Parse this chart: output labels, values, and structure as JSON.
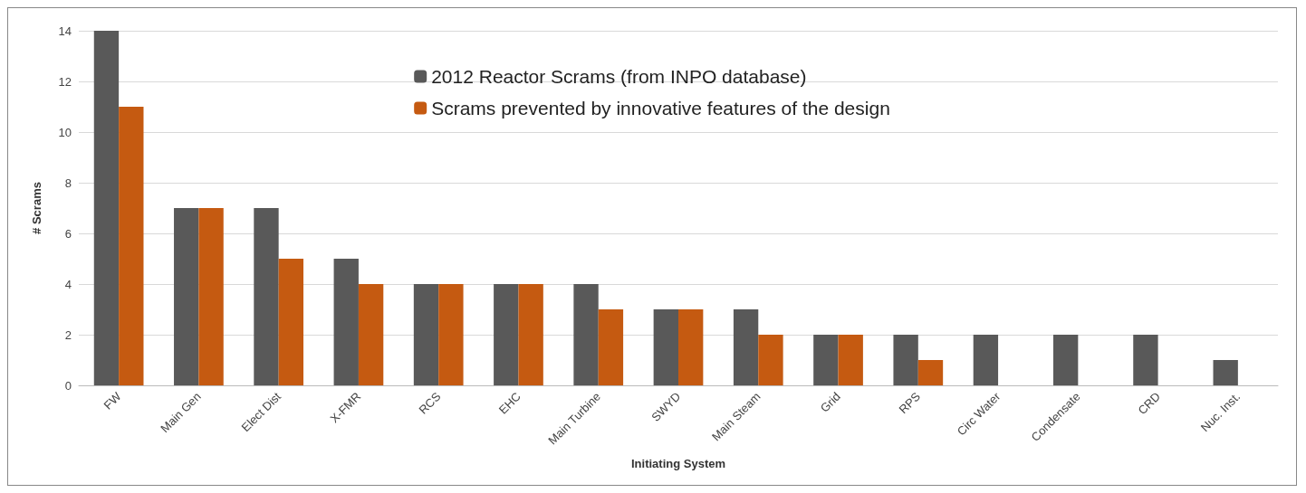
{
  "chart_data": {
    "type": "bar",
    "xlabel": "Initiating System",
    "ylabel": "# Scrams",
    "categories": [
      "FW",
      "Main Gen",
      "Elect Dist",
      "X-FMR",
      "RCS",
      "EHC",
      "Main Turbine",
      "SWYD",
      "Main Steam",
      "Grid",
      "RPS",
      "Circ Water",
      "Condensate",
      "CRD",
      "Nuc. Inst."
    ],
    "series": [
      {
        "name": "2012 Reactor Scrams (from INPO database)",
        "color": "#595959",
        "values": [
          14,
          7,
          7,
          5,
          4,
          4,
          4,
          3,
          3,
          2,
          2,
          2,
          2,
          2,
          1
        ]
      },
      {
        "name": "Scrams prevented by innovative features of the design",
        "color": "#c55a11",
        "values": [
          11,
          7,
          5,
          4,
          4,
          4,
          3,
          3,
          2,
          2,
          1,
          0,
          0,
          0,
          0
        ]
      }
    ],
    "ylim": [
      0,
      14
    ],
    "yticks": [
      0,
      2,
      4,
      6,
      8,
      10,
      12,
      14
    ],
    "grid": "y",
    "legend": "top"
  }
}
